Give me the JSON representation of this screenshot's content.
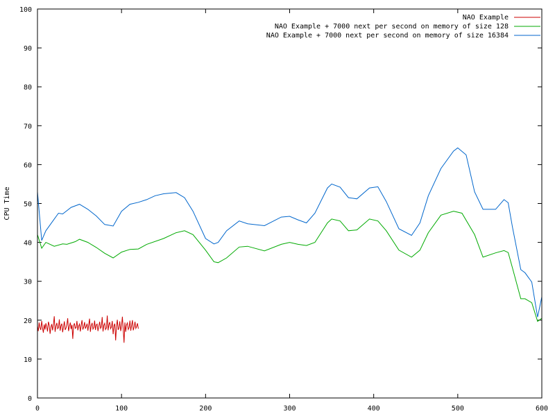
{
  "chart_data": {
    "type": "line",
    "title": "",
    "xlabel": "",
    "ylabel": "CPU Time",
    "xlim": [
      0,
      600
    ],
    "ylim": [
      0,
      100
    ],
    "grid": false,
    "legend_position": "top-right",
    "x_ticks": [
      "0",
      "100",
      "200",
      "300",
      "400",
      "500",
      "600"
    ],
    "y_ticks": [
      "0",
      "10",
      "20",
      "30",
      "40",
      "50",
      "60",
      "70",
      "80",
      "90",
      "100"
    ],
    "series": [
      {
        "name": "NAO Example",
        "color": "#cc0000",
        "x": [
          0,
          1,
          2,
          3,
          4,
          5,
          6,
          7,
          8,
          9,
          10,
          11,
          12,
          13,
          14,
          15,
          16,
          17,
          18,
          19,
          20,
          21,
          22,
          23,
          24,
          25,
          26,
          27,
          28,
          29,
          30,
          31,
          32,
          33,
          34,
          35,
          36,
          37,
          38,
          39,
          40,
          41,
          42,
          43,
          44,
          45,
          46,
          47,
          48,
          49,
          50,
          51,
          52,
          53,
          54,
          55,
          56,
          57,
          58,
          59,
          60,
          61,
          62,
          63,
          64,
          65,
          66,
          67,
          68,
          69,
          70,
          71,
          72,
          73,
          74,
          75,
          76,
          77,
          78,
          79,
          80,
          81,
          82,
          83,
          84,
          85,
          86,
          87,
          88,
          89,
          90,
          91,
          92,
          93,
          94,
          95,
          96,
          97,
          98,
          99,
          100,
          101,
          102,
          103,
          104,
          105,
          106,
          107,
          108,
          109,
          110,
          111,
          112,
          113,
          114,
          115,
          116,
          117,
          118,
          119,
          120
        ],
        "values": [
          18.5,
          17.2,
          19.4,
          18.1,
          17.5,
          19.8,
          18.0,
          16.8,
          18.9,
          17.6,
          19.2,
          18.3,
          17.1,
          19.6,
          18.7,
          16.5,
          18.2,
          19.0,
          17.4,
          18.8,
          21.0,
          17.0,
          18.5,
          19.3,
          17.8,
          18.1,
          20.2,
          17.3,
          18.6,
          19.1,
          16.9,
          18.4,
          19.7,
          17.5,
          18.0,
          18.9,
          20.5,
          17.2,
          18.3,
          19.4,
          17.7,
          18.8,
          15.2,
          18.6,
          19.2,
          17.9,
          18.1,
          19.8,
          17.4,
          18.5,
          19.0,
          17.1,
          18.7,
          20.0,
          17.6,
          18.2,
          19.5,
          17.8,
          18.4,
          19.1,
          17.3,
          18.9,
          20.4,
          17.0,
          18.6,
          19.3,
          17.7,
          18.1,
          19.9,
          17.5,
          18.8,
          19.0,
          17.2,
          18.5,
          19.6,
          17.9,
          18.3,
          20.8,
          17.1,
          18.7,
          19.2,
          17.6,
          18.0,
          21.2,
          17.4,
          18.9,
          19.5,
          17.8,
          18.2,
          19.8,
          16.4,
          18.6,
          19.1,
          14.8,
          18.4,
          20.1,
          17.5,
          18.0,
          19.7,
          17.2,
          18.5,
          20.9,
          17.7,
          14.2,
          19.4,
          17.0,
          18.8,
          19.3,
          17.6,
          18.1,
          19.9,
          17.3,
          18.7,
          20.0,
          17.4,
          18.2,
          19.6,
          17.9,
          18.4,
          19.2,
          17.8
        ]
      },
      {
        "name": "NAO Example + 7000  next per second on memory of size 128",
        "color": "#00aa00",
        "x": [
          0,
          5,
          10,
          20,
          30,
          35,
          45,
          50,
          60,
          70,
          80,
          90,
          100,
          110,
          120,
          130,
          150,
          165,
          175,
          185,
          200,
          210,
          215,
          225,
          240,
          250,
          270,
          290,
          300,
          310,
          320,
          330,
          345,
          350,
          360,
          370,
          380,
          395,
          405,
          415,
          430,
          445,
          455,
          465,
          480,
          495,
          505,
          520,
          530,
          545,
          555,
          560,
          565,
          575,
          580,
          588,
          595,
          600
        ],
        "values": [
          42,
          38.5,
          40,
          39,
          39.6,
          39.5,
          40.2,
          40.8,
          40,
          38.7,
          37.2,
          36,
          37.5,
          38.2,
          38.3,
          39.5,
          41,
          42.5,
          43,
          42,
          38,
          35,
          34.8,
          36,
          38.8,
          39,
          37.8,
          39.5,
          40,
          39.5,
          39.2,
          40,
          45,
          46,
          45.5,
          43,
          43.2,
          46,
          45.5,
          43,
          38,
          36.2,
          38,
          42.5,
          47,
          48,
          47.5,
          42,
          36.2,
          37.3,
          37.9,
          37.4,
          33.5,
          25.5,
          25.5,
          24.5,
          19.7,
          20.5
        ]
      },
      {
        "name": "NAO Example + 7000  next per second on memory of size 16384",
        "color": "#0066cc",
        "x": [
          0,
          5,
          10,
          20,
          25,
          30,
          40,
          50,
          60,
          70,
          80,
          90,
          100,
          110,
          120,
          130,
          140,
          150,
          165,
          175,
          185,
          200,
          210,
          215,
          225,
          240,
          250,
          270,
          290,
          300,
          310,
          320,
          330,
          345,
          350,
          360,
          370,
          380,
          395,
          405,
          415,
          430,
          445,
          455,
          465,
          480,
          495,
          500,
          510,
          520,
          530,
          545,
          555,
          560,
          565,
          575,
          580,
          588,
          595,
          600
        ],
        "values": [
          53,
          40.5,
          43,
          46,
          47.5,
          47.3,
          49,
          49.8,
          48.5,
          46.8,
          44.6,
          44.2,
          48,
          49.8,
          50.3,
          51,
          52,
          52.5,
          52.8,
          51.5,
          48,
          41,
          39.6,
          40,
          43,
          45.5,
          44.8,
          44.3,
          46.5,
          46.7,
          45.8,
          45,
          47.5,
          54,
          55,
          54.2,
          51.5,
          51.2,
          54,
          54.3,
          50.5,
          43.5,
          41.8,
          45,
          52,
          59,
          63.5,
          64.3,
          62.5,
          53,
          48.5,
          48.5,
          51,
          50.2,
          44,
          33,
          32.2,
          29.8,
          20.8,
          26
        ]
      }
    ]
  }
}
